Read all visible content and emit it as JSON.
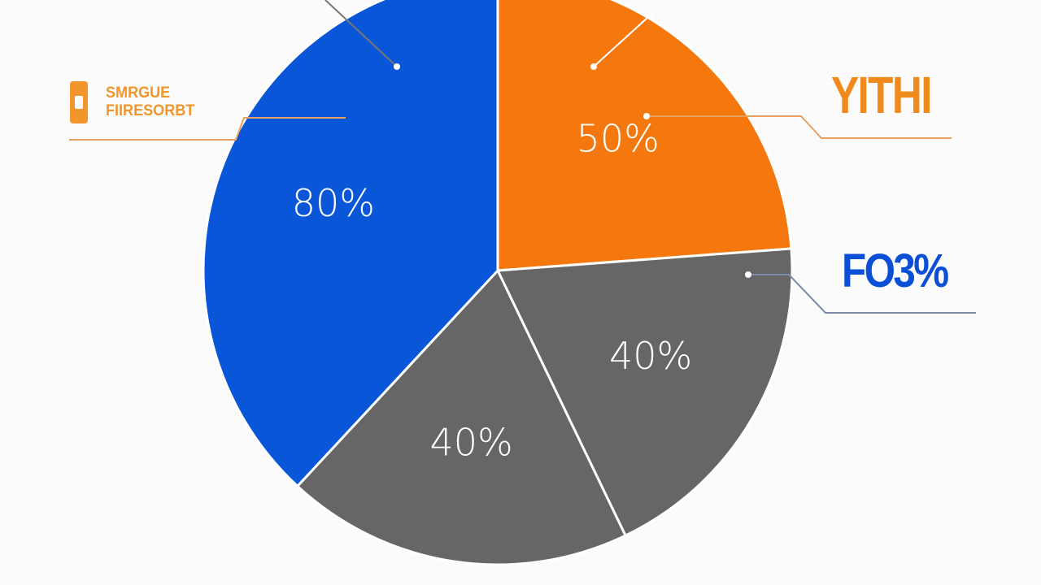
{
  "chart_data": {
    "type": "pie",
    "categories": [
      "YITHI",
      "FO3%",
      null,
      "SMRGUE\nFIIRESORBT"
    ],
    "values": [
      50,
      40,
      40,
      80
    ],
    "value_labels": [
      "50%",
      "40%",
      "40%",
      "80%"
    ],
    "colors": [
      "#f5780f",
      "#666666",
      "#666666",
      "#0a56d8"
    ],
    "label_colors": [
      "#f08a1c",
      "#0b4fd6",
      null,
      "#f0962c"
    ]
  }
}
